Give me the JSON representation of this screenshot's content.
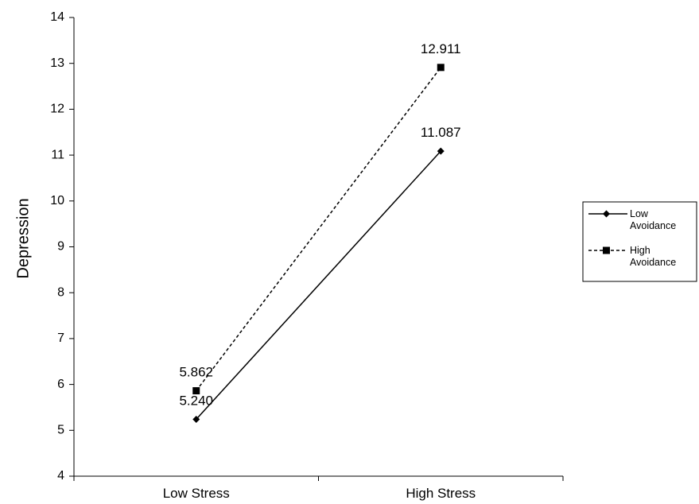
{
  "chart_data": {
    "type": "line",
    "categories": [
      "Low Stress",
      "High Stress"
    ],
    "ylabel": "Depression",
    "xlabel": "",
    "ylim": [
      4,
      14
    ],
    "yticks": [
      4,
      5,
      6,
      7,
      8,
      9,
      10,
      11,
      12,
      13,
      14
    ],
    "grid": false,
    "legend_position": "right",
    "series": [
      {
        "name": "Low Avoidance",
        "legend_lines": [
          "Low",
          "Avoidance"
        ],
        "values": [
          5.24,
          11.087
        ],
        "labels": [
          "5.240",
          "11.087"
        ],
        "line_style": "solid",
        "marker": "diamond",
        "color": "#000000"
      },
      {
        "name": "High Avoidance",
        "legend_lines": [
          "High",
          "Avoidance"
        ],
        "values": [
          5.862,
          12.911
        ],
        "labels": [
          "5.862",
          "12.911"
        ],
        "line_style": "dashed",
        "marker": "square",
        "color": "#000000"
      }
    ]
  }
}
